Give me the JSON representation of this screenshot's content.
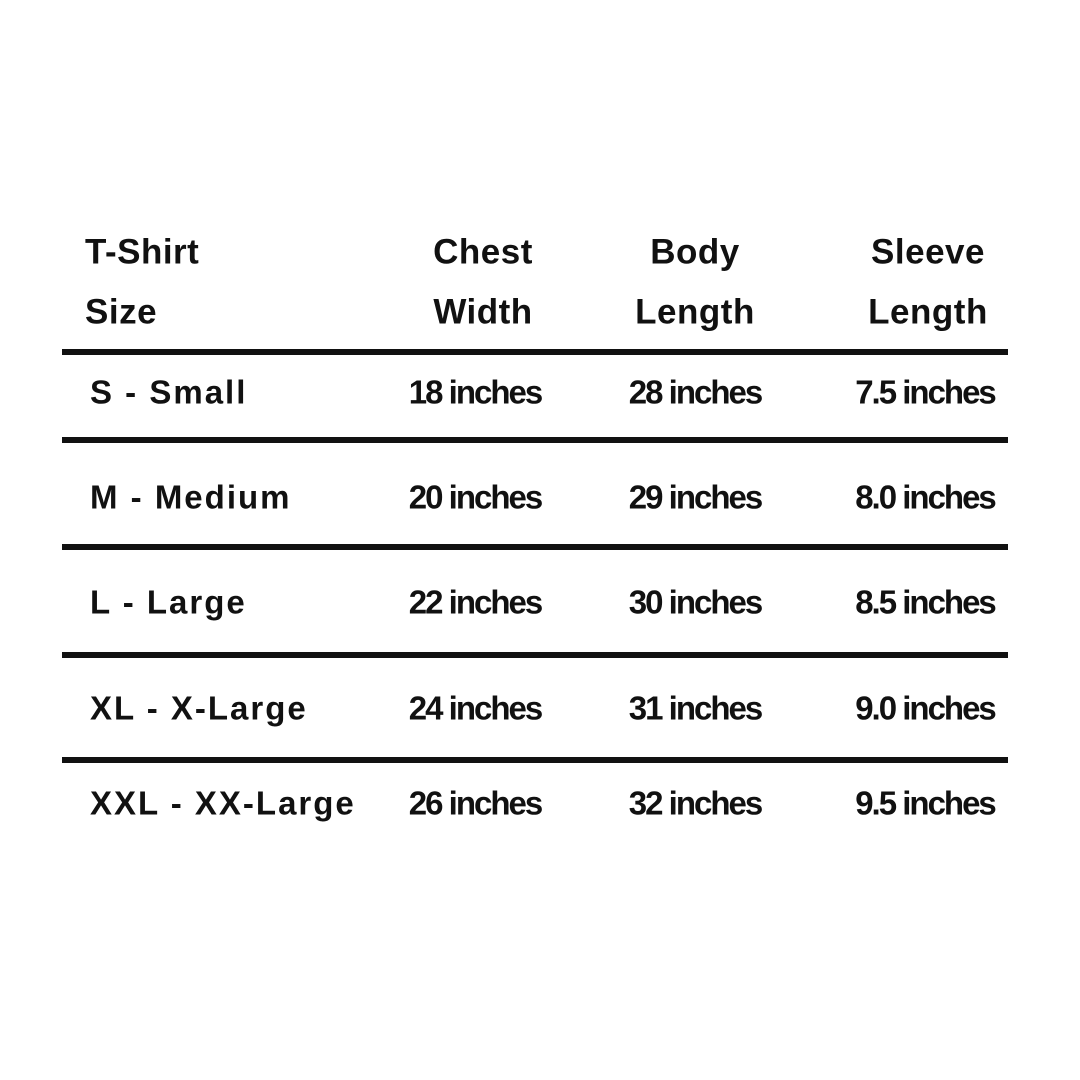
{
  "table": {
    "header": [
      [
        "T-Shirt",
        "Size"
      ],
      [
        "Chest",
        "Width"
      ],
      [
        "Body",
        "Length"
      ],
      [
        "Sleeve",
        "Length"
      ]
    ],
    "rows": [
      [
        "S - Small",
        "18 inches",
        "28 inches",
        "7.5 inches"
      ],
      [
        "M - Medium",
        "20 inches",
        "29 inches",
        "8.0 inches"
      ],
      [
        "L - Large",
        "22 inches",
        "30 inches",
        "8.5 inches"
      ],
      [
        "XL - X-Large",
        "24 inches",
        "31 inches",
        "9.0 inches"
      ],
      [
        "XXL - XX-Large",
        "26 inches",
        "32 inches",
        "9.5 inches"
      ]
    ]
  }
}
